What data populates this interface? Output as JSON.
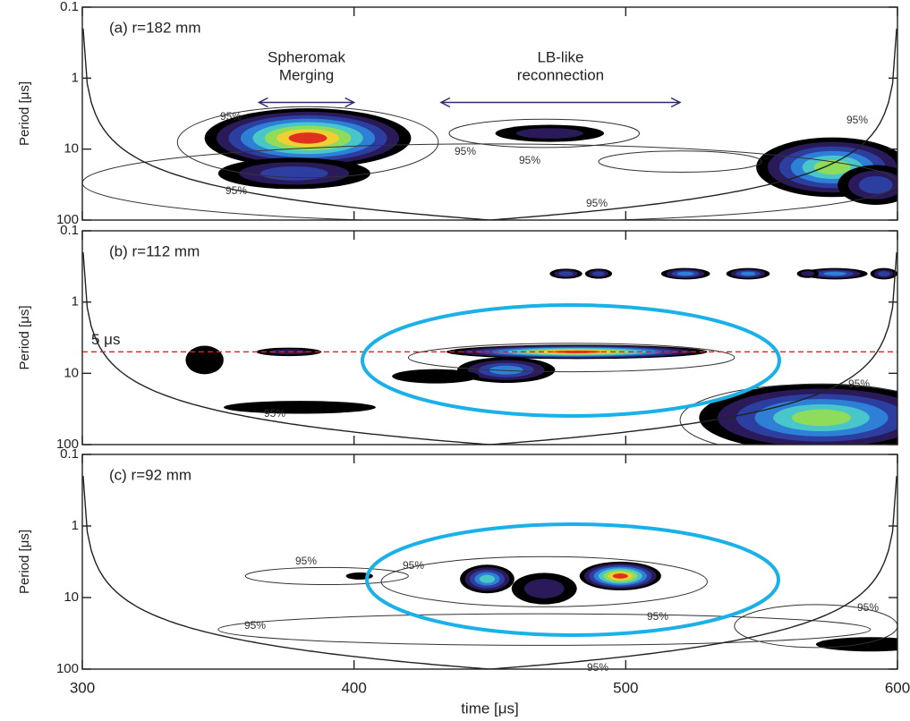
{
  "chart_data": [
    {
      "type": "contour",
      "title": "(a) r=182 mm",
      "xlim": [
        300,
        600
      ],
      "ylim": [
        0.1,
        100
      ],
      "log_y": true,
      "y_inverted": true,
      "xticks": [
        300,
        400,
        500,
        600
      ],
      "yticks": [
        0.1,
        1,
        10,
        100
      ],
      "ylabel": "Period [μs]",
      "show_xtick_labels": false,
      "annotations": [
        [
          "Spheromak",
          "Merging"
        ],
        [
          "LB-like",
          "reconnection"
        ]
      ],
      "contour_labels": [
        "95%",
        "95%",
        "95%",
        "95%",
        "95%",
        "95%"
      ]
    },
    {
      "type": "contour",
      "title": "(b) r=112 mm",
      "xlim": [
        300,
        600
      ],
      "ylim": [
        0.1,
        100
      ],
      "log_y": true,
      "y_inverted": true,
      "xticks": [
        300,
        400,
        500,
        600
      ],
      "yticks": [
        0.1,
        1,
        10,
        100
      ],
      "ylabel": "Period [μs]",
      "show_xtick_labels": false,
      "reference_line": {
        "value": 5,
        "label": "5 μs",
        "color": "#e02020"
      },
      "contour_labels": [
        "95%",
        "95%"
      ]
    },
    {
      "type": "contour",
      "title": "(c) r=92 mm",
      "xlim": [
        300,
        600
      ],
      "ylim": [
        0.1,
        100
      ],
      "log_y": true,
      "y_inverted": true,
      "xticks": [
        300,
        400,
        500,
        600
      ],
      "yticks": [
        0.1,
        1,
        10,
        100
      ],
      "ylabel": "Period [μs]",
      "show_xtick_labels": true,
      "xlabel": "time [μs]",
      "contour_labels": [
        "95%",
        "95%",
        "95%",
        "95%",
        "95%",
        "95%"
      ]
    }
  ]
}
